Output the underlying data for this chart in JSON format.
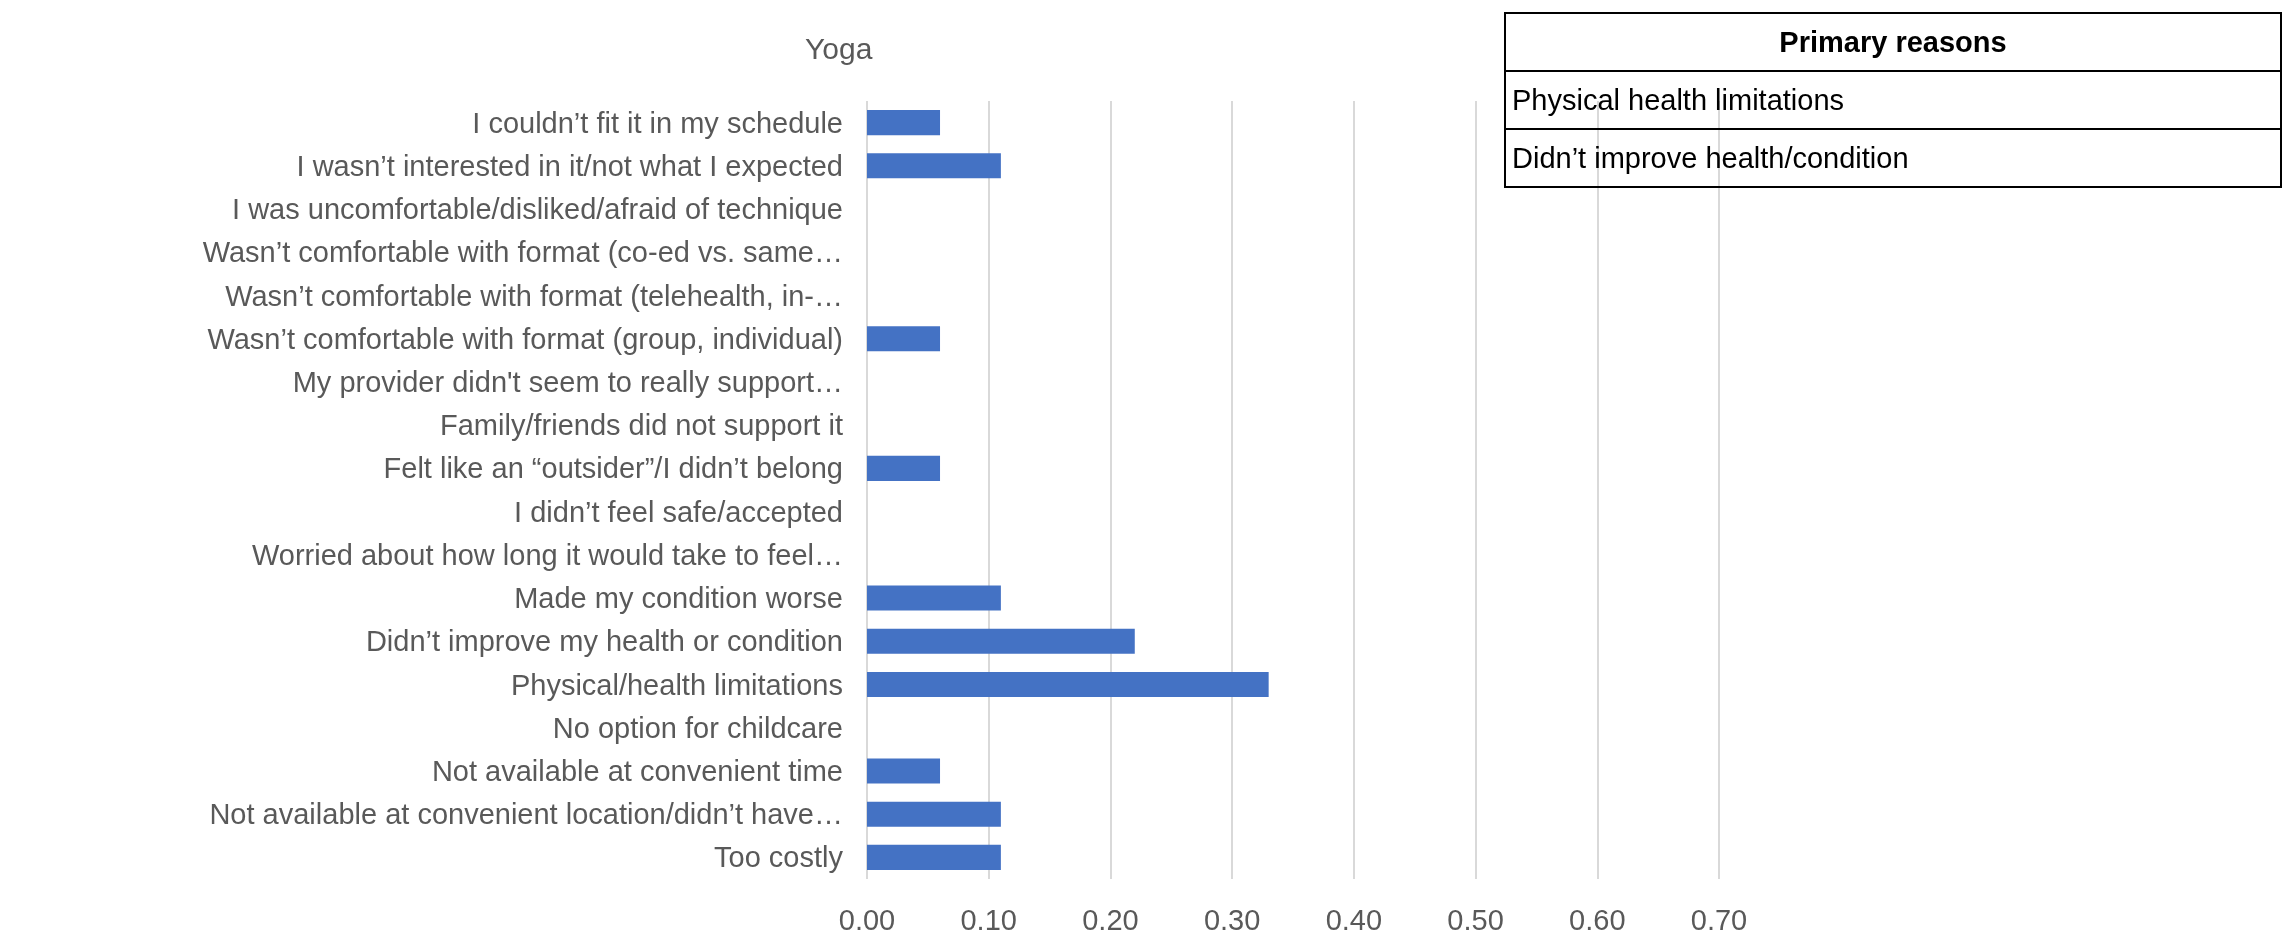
{
  "chart_data": {
    "type": "bar",
    "orientation": "horizontal",
    "title": "Yoga",
    "categories": [
      "I couldn’t fit it in my schedule",
      "I wasn’t interested in it/not what I expected",
      "I was uncomfortable/disliked/afraid of technique",
      "Wasn’t comfortable with format (co-ed vs. same…",
      "Wasn’t comfortable with format (telehealth, in-…",
      "Wasn’t comfortable with format (group, individual)",
      "My provider didn't seem to really support…",
      "Family/friends did not support it",
      "Felt like an “outsider”/I didn’t belong",
      "I didn’t feel safe/accepted",
      "Worried about how long it would take to feel…",
      "Made my condition worse",
      "Didn’t improve my health or condition",
      "Physical/health limitations",
      "No option for childcare",
      "Not available at convenient time",
      "Not available at convenient location/didn’t have…",
      "Too costly"
    ],
    "values": [
      0.06,
      0.11,
      0,
      0,
      0,
      0.06,
      0,
      0,
      0.06,
      0,
      0,
      0.11,
      0.22,
      0.33,
      0,
      0.06,
      0.11,
      0.11
    ],
    "color": "#4472c4",
    "xlim": [
      0,
      0.7
    ],
    "xticks": [
      {
        "value": 0,
        "label": "0.00"
      },
      {
        "value": 0.1,
        "label": "0.10"
      },
      {
        "value": 0.2,
        "label": "0.20"
      },
      {
        "value": 0.3,
        "label": "0.30"
      },
      {
        "value": 0.4,
        "label": "0.40"
      },
      {
        "value": 0.5,
        "label": "0.50"
      },
      {
        "value": 0.6,
        "label": "0.60"
      },
      {
        "value": 0.7,
        "label": "0.70"
      }
    ],
    "grid": "x",
    "annotations": [
      "Primary reasons",
      "Physical health limitations",
      "Didn’t improve health/condition"
    ]
  }
}
